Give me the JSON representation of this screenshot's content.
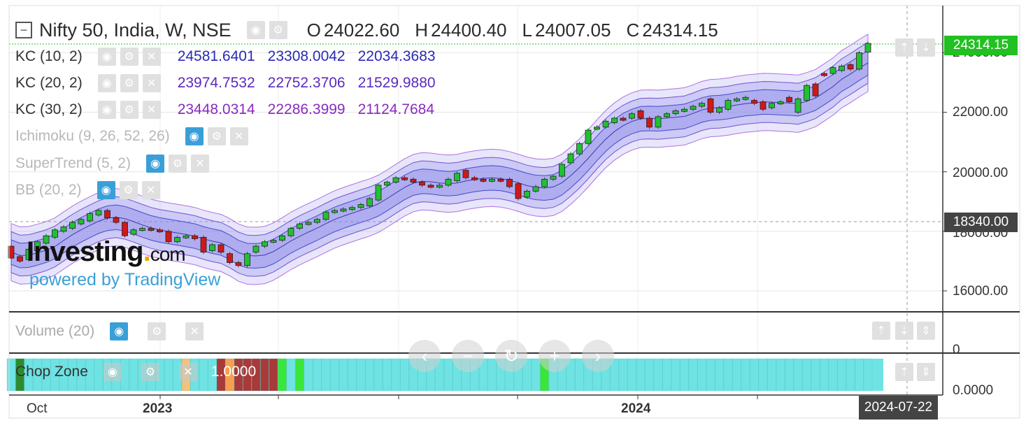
{
  "header": {
    "symbol": "Nifty 50, India, W, NSE",
    "open_label": "O",
    "open": "24022.60",
    "high_label": "H",
    "high": "24400.40",
    "low_label": "L",
    "low": "24007.05",
    "close_label": "C",
    "close": "24314.15"
  },
  "indicators": [
    {
      "name": "KC (10, 2)",
      "values": [
        "24581.6401",
        "23308.0042",
        "22034.3683"
      ],
      "color": "#2a2ab5",
      "visible": true
    },
    {
      "name": "KC (20, 2)",
      "values": [
        "23974.7532",
        "22752.3706",
        "21529.9880"
      ],
      "color": "#5a2ac0",
      "visible": true
    },
    {
      "name": "KC (30, 2)",
      "values": [
        "23448.0314",
        "22286.3999",
        "21124.7684"
      ],
      "color": "#8a2ac0",
      "visible": true
    },
    {
      "name": "Ichimoku (9, 26, 52, 26)",
      "values": [],
      "visible": false
    },
    {
      "name": "SuperTrend (5, 2)",
      "values": [],
      "visible": false
    },
    {
      "name": "BB (20, 2)",
      "values": [],
      "visible": false
    }
  ],
  "price_axis": {
    "ticks": [
      "16000.00",
      "18000.00",
      "20000.00",
      "22000.00",
      "24000.00"
    ],
    "last_price_tag": "24314.15",
    "crosshair_price_tag": "18340.00"
  },
  "time_axis": {
    "labels": [
      "Oct",
      "2023",
      "2024"
    ],
    "crosshair_date": "2024-07-22"
  },
  "volume_pane": {
    "label": "Volume (20)",
    "axis_tick": "0"
  },
  "chop_pane": {
    "label": "Chop Zone",
    "value": "1.0000",
    "axis_tick": "0.0000"
  },
  "watermark": {
    "logo_main": "Investing",
    "logo_suffix": "com",
    "powered_by": "powered by TradingView"
  },
  "colors": {
    "up": "#22c033",
    "down": "#d01818",
    "channel_fill": "#9898ee",
    "chop_turquoise": "#6fe3e3",
    "last_price_bg": "#22c022",
    "crosshair_tag_bg": "#444444"
  },
  "icons": [
    "collapse-icon",
    "eye-icon",
    "gear-icon",
    "close-icon",
    "arrow-up-icon",
    "arrow-down-icon",
    "chevron-left-icon",
    "minus-icon",
    "reset-icon",
    "plus-icon",
    "chevron-right-icon"
  ],
  "chart_data": {
    "type": "candlestick",
    "title": "Nifty 50, India, W, NSE",
    "ylim": [
      15200,
      25000
    ],
    "y_ticks": [
      16000,
      18000,
      20000,
      22000,
      24000
    ],
    "x_labels": [
      "Oct",
      "2023",
      "2024"
    ],
    "candles": [
      {
        "o": 17500,
        "c": 17100
      },
      {
        "o": 17150,
        "c": 17000
      },
      {
        "o": 17050,
        "c": 17400
      },
      {
        "o": 17350,
        "c": 17650
      },
      {
        "o": 17600,
        "c": 17850
      },
      {
        "o": 17800,
        "c": 18050
      },
      {
        "o": 18000,
        "c": 18150
      },
      {
        "o": 18100,
        "c": 18300
      },
      {
        "o": 18250,
        "c": 18400
      },
      {
        "o": 18350,
        "c": 18600
      },
      {
        "o": 18550,
        "c": 18700
      },
      {
        "o": 18700,
        "c": 18450
      },
      {
        "o": 18450,
        "c": 18300
      },
      {
        "o": 18300,
        "c": 17850
      },
      {
        "o": 17900,
        "c": 18050
      },
      {
        "o": 18050,
        "c": 18100
      },
      {
        "o": 18100,
        "c": 18050
      },
      {
        "o": 18050,
        "c": 18000
      },
      {
        "o": 18000,
        "c": 17650
      },
      {
        "o": 17650,
        "c": 17800
      },
      {
        "o": 17800,
        "c": 17850
      },
      {
        "o": 17850,
        "c": 17750
      },
      {
        "o": 17800,
        "c": 17300
      },
      {
        "o": 17350,
        "c": 17550
      },
      {
        "o": 17550,
        "c": 17300
      },
      {
        "o": 17250,
        "c": 16950
      },
      {
        "o": 16950,
        "c": 16850
      },
      {
        "o": 16850,
        "c": 17250
      },
      {
        "o": 17300,
        "c": 17500
      },
      {
        "o": 17500,
        "c": 17650
      },
      {
        "o": 17650,
        "c": 17700
      },
      {
        "o": 17700,
        "c": 17850
      },
      {
        "o": 17850,
        "c": 18100
      },
      {
        "o": 18100,
        "c": 18250
      },
      {
        "o": 18250,
        "c": 18300
      },
      {
        "o": 18300,
        "c": 18400
      },
      {
        "o": 18400,
        "c": 18650
      },
      {
        "o": 18650,
        "c": 18700
      },
      {
        "o": 18700,
        "c": 18750
      },
      {
        "o": 18750,
        "c": 18800
      },
      {
        "o": 18800,
        "c": 18900
      },
      {
        "o": 18850,
        "c": 19100
      },
      {
        "o": 19050,
        "c": 19550
      },
      {
        "o": 19550,
        "c": 19650
      },
      {
        "o": 19650,
        "c": 19800
      },
      {
        "o": 19800,
        "c": 19750
      },
      {
        "o": 19750,
        "c": 19650
      },
      {
        "o": 19650,
        "c": 19550
      },
      {
        "o": 19550,
        "c": 19500
      },
      {
        "o": 19500,
        "c": 19550
      },
      {
        "o": 19550,
        "c": 19750
      },
      {
        "o": 19700,
        "c": 19950
      },
      {
        "o": 20050,
        "c": 19800
      },
      {
        "o": 19800,
        "c": 19750
      },
      {
        "o": 19750,
        "c": 19700
      },
      {
        "o": 19700,
        "c": 19750
      },
      {
        "o": 19750,
        "c": 19700
      },
      {
        "o": 19750,
        "c": 19500
      },
      {
        "o": 19600,
        "c": 19100
      },
      {
        "o": 19150,
        "c": 19350
      },
      {
        "o": 19350,
        "c": 19500
      },
      {
        "o": 19500,
        "c": 19750
      },
      {
        "o": 19750,
        "c": 19850
      },
      {
        "o": 19850,
        "c": 20250
      },
      {
        "o": 20300,
        "c": 20600
      },
      {
        "o": 20600,
        "c": 20950
      },
      {
        "o": 20950,
        "c": 21400
      },
      {
        "o": 21450,
        "c": 21500
      },
      {
        "o": 21500,
        "c": 21700
      },
      {
        "o": 21650,
        "c": 21800
      },
      {
        "o": 21800,
        "c": 21750
      },
      {
        "o": 21800,
        "c": 21950
      },
      {
        "o": 22050,
        "c": 21800
      },
      {
        "o": 21800,
        "c": 21500
      },
      {
        "o": 21500,
        "c": 21850
      },
      {
        "o": 21850,
        "c": 21950
      },
      {
        "o": 21950,
        "c": 22050
      },
      {
        "o": 22050,
        "c": 22100
      },
      {
        "o": 22100,
        "c": 22200
      },
      {
        "o": 22200,
        "c": 22300
      },
      {
        "o": 22450,
        "c": 22000
      },
      {
        "o": 22000,
        "c": 22150
      },
      {
        "o": 22100,
        "c": 22400
      },
      {
        "o": 22400,
        "c": 22450
      },
      {
        "o": 22450,
        "c": 22500
      },
      {
        "o": 22400,
        "c": 22300
      },
      {
        "o": 22350,
        "c": 22100
      },
      {
        "o": 22150,
        "c": 22300
      },
      {
        "o": 22300,
        "c": 22350
      },
      {
        "o": 22500,
        "c": 22350
      },
      {
        "o": 22000,
        "c": 22450
      },
      {
        "o": 22400,
        "c": 22900
      },
      {
        "o": 22950,
        "c": 22550
      },
      {
        "o": 23300,
        "c": 23250
      },
      {
        "o": 23300,
        "c": 23500
      },
      {
        "o": 23400,
        "c": 23550
      },
      {
        "o": 23600,
        "c": 23450
      },
      {
        "o": 23450,
        "c": 24000
      },
      {
        "o": 24022.6,
        "c": 24314.15
      }
    ]
  }
}
